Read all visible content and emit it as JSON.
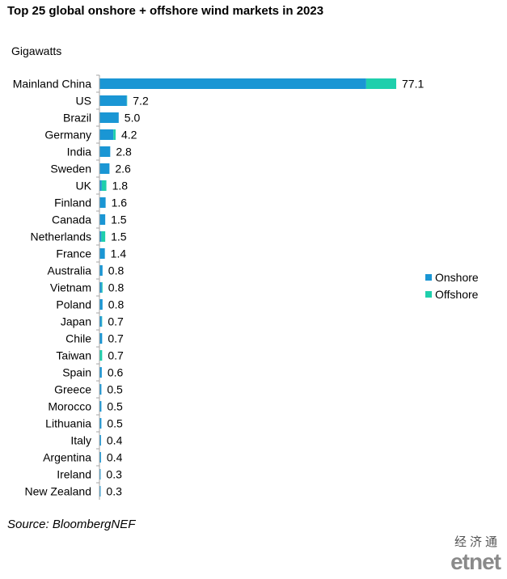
{
  "chart_data": {
    "type": "bar",
    "orientation": "horizontal",
    "stacked": true,
    "title": "Top 25 global onshore + offshore wind markets in 2023",
    "ylabel": "Gigawatts",
    "categories": [
      "Mainland China",
      "US",
      "Brazil",
      "Germany",
      "India",
      "Sweden",
      "UK",
      "Finland",
      "Canada",
      "Netherlands",
      "France",
      "Australia",
      "Vietnam",
      "Poland",
      "Japan",
      "Chile",
      "Taiwan",
      "Spain",
      "Greece",
      "Morocco",
      "Lithuania",
      "Italy",
      "Argentina",
      "Ireland",
      "New Zealand"
    ],
    "series": [
      {
        "name": "Onshore",
        "color": "#1a96d4",
        "values": [
          69.3,
          7.1,
          5.0,
          3.6,
          2.8,
          2.6,
          0.6,
          1.6,
          1.5,
          0.5,
          1.4,
          0.8,
          0.6,
          0.8,
          0.6,
          0.7,
          0.1,
          0.6,
          0.5,
          0.5,
          0.5,
          0.4,
          0.4,
          0.3,
          0.3
        ]
      },
      {
        "name": "Offshore",
        "color": "#1fcfac",
        "values": [
          7.8,
          0.1,
          0.0,
          0.6,
          0.0,
          0.0,
          1.2,
          0.0,
          0.0,
          1.0,
          0.0,
          0.0,
          0.2,
          0.0,
          0.1,
          0.0,
          0.6,
          0.0,
          0.0,
          0.0,
          0.0,
          0.0,
          0.0,
          0.0,
          0.0
        ]
      }
    ],
    "totals": [
      "77.1",
      "7.2",
      "5.0",
      "4.2",
      "2.8",
      "2.6",
      "1.8",
      "1.6",
      "1.5",
      "1.5",
      "1.4",
      "0.8",
      "0.8",
      "0.8",
      "0.7",
      "0.7",
      "0.7",
      "0.6",
      "0.5",
      "0.5",
      "0.5",
      "0.4",
      "0.4",
      "0.3",
      "0.3"
    ],
    "xlim": [
      0,
      77.1
    ],
    "legend_position": "right",
    "grid": false
  },
  "source": "Source: BloombergNEF",
  "brand": {
    "chinese": "经济通",
    "logo": "etnet"
  }
}
